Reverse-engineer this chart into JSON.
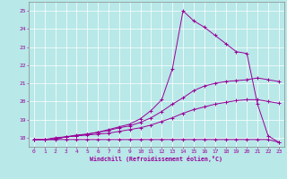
{
  "xlabel": "Windchill (Refroidissement éolien,°C)",
  "bg_color": "#b8e8e8",
  "line_color": "#990099",
  "grid_color": "#ffffff",
  "xlim": [
    -0.5,
    23.5
  ],
  "ylim": [
    17.5,
    25.5
  ],
  "xticks": [
    0,
    1,
    2,
    3,
    4,
    5,
    6,
    7,
    8,
    9,
    10,
    11,
    12,
    13,
    14,
    15,
    16,
    17,
    18,
    19,
    20,
    21,
    22,
    23
  ],
  "yticks": [
    18,
    19,
    20,
    21,
    22,
    23,
    24,
    25
  ],
  "line1_x": [
    0,
    1,
    2,
    3,
    4,
    5,
    6,
    7,
    8,
    9,
    10,
    11,
    12,
    13,
    14,
    15,
    16,
    17,
    18,
    19,
    20,
    21,
    22,
    23
  ],
  "line1_y": [
    17.9,
    17.9,
    17.9,
    17.9,
    17.9,
    17.9,
    17.9,
    17.9,
    17.9,
    17.9,
    17.9,
    17.9,
    17.9,
    17.9,
    17.9,
    17.9,
    17.9,
    17.9,
    17.9,
    17.9,
    17.9,
    17.9,
    17.9,
    17.75
  ],
  "line2_x": [
    0,
    1,
    2,
    3,
    4,
    5,
    6,
    7,
    8,
    9,
    10,
    11,
    12,
    13,
    14,
    15,
    16,
    17,
    18,
    19,
    20,
    21,
    22,
    23
  ],
  "line2_y": [
    17.9,
    17.9,
    17.95,
    18.05,
    18.1,
    18.15,
    18.2,
    18.25,
    18.35,
    18.45,
    18.55,
    18.7,
    18.9,
    19.1,
    19.35,
    19.55,
    19.7,
    19.85,
    19.95,
    20.05,
    20.1,
    20.1,
    20.0,
    19.9
  ],
  "line3_x": [
    0,
    1,
    2,
    3,
    4,
    5,
    6,
    7,
    8,
    9,
    10,
    11,
    12,
    13,
    14,
    15,
    16,
    17,
    18,
    19,
    20,
    21,
    22,
    23
  ],
  "line3_y": [
    17.9,
    17.9,
    18.0,
    18.05,
    18.1,
    18.2,
    18.3,
    18.4,
    18.55,
    18.65,
    18.85,
    19.1,
    19.45,
    19.85,
    20.2,
    20.6,
    20.85,
    21.0,
    21.1,
    21.15,
    21.2,
    21.3,
    21.2,
    21.1
  ],
  "line4_x": [
    0,
    1,
    2,
    3,
    4,
    5,
    6,
    7,
    8,
    9,
    10,
    11,
    12,
    13,
    14,
    15,
    16,
    17,
    18,
    19,
    20,
    21,
    22,
    23
  ],
  "line4_y": [
    17.9,
    17.9,
    17.9,
    18.05,
    18.15,
    18.2,
    18.3,
    18.45,
    18.6,
    18.75,
    19.05,
    19.5,
    20.1,
    21.8,
    25.0,
    24.45,
    24.1,
    23.65,
    23.2,
    22.75,
    22.65,
    19.85,
    18.1,
    17.75
  ]
}
